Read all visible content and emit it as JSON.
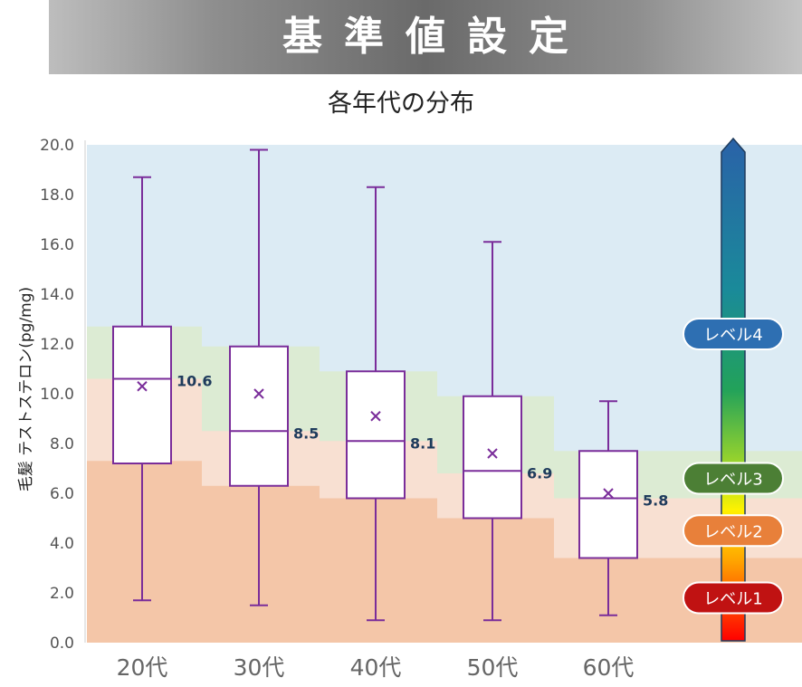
{
  "header": {
    "title": "基準値設定"
  },
  "chart_data": {
    "type": "box",
    "title": "各年代の分布",
    "ylabel": "毛髪 テストステロン(pg/mg)",
    "ylim": [
      0,
      20
    ],
    "yticks": [
      "0.0",
      "2.0",
      "4.0",
      "6.0",
      "8.0",
      "10.0",
      "12.0",
      "14.0",
      "16.0",
      "18.0",
      "20.0"
    ],
    "categories": [
      "20代",
      "30代",
      "40代",
      "50代",
      "60代"
    ],
    "boxes": [
      {
        "min": 1.7,
        "q1": 7.2,
        "median": 10.6,
        "q3": 12.7,
        "max": 18.7,
        "mean": 10.3,
        "label": "10.6"
      },
      {
        "min": 1.5,
        "q1": 6.3,
        "median": 8.5,
        "q3": 11.9,
        "max": 19.8,
        "mean": 10.0,
        "label": "8.5"
      },
      {
        "min": 0.9,
        "q1": 5.8,
        "median": 8.1,
        "q3": 10.9,
        "max": 18.3,
        "mean": 9.1,
        "label": "8.1"
      },
      {
        "min": 0.9,
        "q1": 5.0,
        "median": 6.9,
        "q3": 9.9,
        "max": 16.1,
        "mean": 7.6,
        "label": "6.9"
      },
      {
        "min": 1.1,
        "q1": 3.4,
        "median": 5.8,
        "q3": 7.7,
        "max": 9.7,
        "mean": 6.0,
        "label": "5.8"
      }
    ],
    "levels": [
      {
        "name": "レベル4",
        "color": "#2e6fb2",
        "value": 12.4
      },
      {
        "name": "レベル3",
        "color": "#4c7f35",
        "value": 6.6
      },
      {
        "name": "レベル2",
        "color": "#e8803a",
        "value": 4.5
      },
      {
        "name": "レベル1",
        "color": "#c01212",
        "value": 1.8
      }
    ],
    "bands": [
      {
        "level": "レベル1",
        "upper": [
          7.3,
          6.3,
          5.8,
          5.0,
          3.4,
          3.4
        ],
        "color": "#f4c6a8"
      },
      {
        "level": "レベル2",
        "upper": [
          10.6,
          8.5,
          8.1,
          6.8,
          5.8,
          5.8
        ],
        "color": "#f8e0d2"
      },
      {
        "level": "レベル3",
        "upper": [
          12.7,
          11.9,
          10.9,
          9.9,
          7.7,
          7.7
        ],
        "color": "#dcebd3"
      },
      {
        "level": "レベル4",
        "upper": [
          20,
          20,
          20,
          20,
          20,
          20
        ],
        "color": "#dcebf4"
      }
    ],
    "grid": false,
    "colors": {
      "box_stroke": "#7a2d9a",
      "mean_marker": "#7a2d9a",
      "median_label": "#1f3b5c"
    }
  }
}
